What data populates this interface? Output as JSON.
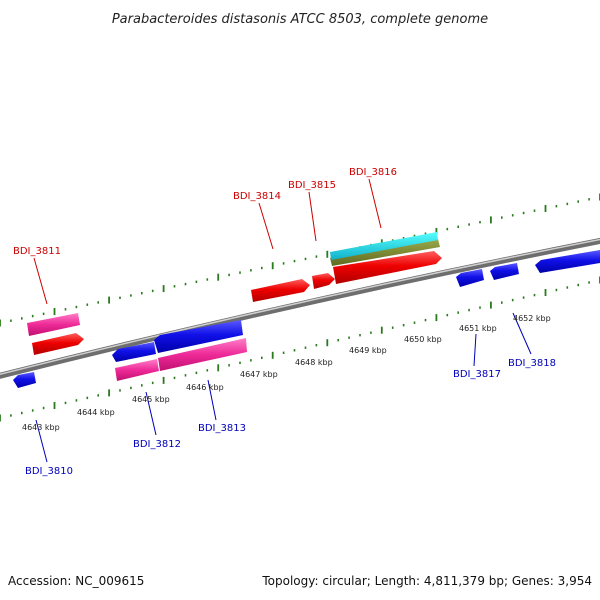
{
  "title": "Parabacteroides distasonis ATCC 8503, complete genome",
  "footer": {
    "accession": "Accession: NC_009615",
    "topology": "Topology: circular; Length: 4,811,379 bp; Genes: 3,954"
  },
  "colors": {
    "plus_label": "#cc0000",
    "minus_label": "#0000bb",
    "tick": "#2a7a1e",
    "axis": "#888888"
  },
  "position_ticks": [
    "4643 kbp",
    "4644 kbp",
    "4645 kbp",
    "4646 kbp",
    "4647 kbp",
    "4648 kbp",
    "4649 kbp",
    "4650 kbp",
    "4651 kbp",
    "4652 kbp"
  ],
  "plus_genes": [
    "BDI_3811",
    "BDI_3814",
    "BDI_3815",
    "BDI_3816"
  ],
  "minus_genes": [
    "BDI_3810",
    "BDI_3812",
    "BDI_3813",
    "BDI_3817",
    "BDI_3818"
  ]
}
